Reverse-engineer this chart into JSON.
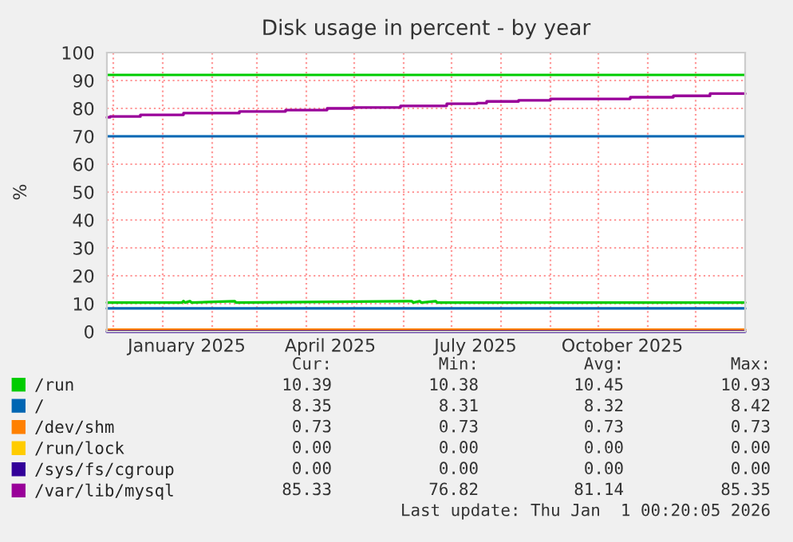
{
  "chart_data": {
    "type": "line",
    "title": "Disk usage in percent - by year",
    "ylabel": "%",
    "xlim": [
      "2024-11-27",
      "2026-01-01"
    ],
    "xticks": [
      {
        "value": "2024-12-01",
        "label": null
      },
      {
        "value": "2025-01-01",
        "label": null
      },
      {
        "value": "2025-01-16",
        "label": "January 2025"
      },
      {
        "value": "2025-02-01",
        "label": null
      },
      {
        "value": "2025-03-01",
        "label": null
      },
      {
        "value": "2025-04-01",
        "label": null
      },
      {
        "value": "2025-04-16",
        "label": "April 2025"
      },
      {
        "value": "2025-05-01",
        "label": null
      },
      {
        "value": "2025-06-01",
        "label": null
      },
      {
        "value": "2025-07-01",
        "label": null
      },
      {
        "value": "2025-07-16",
        "label": "July 2025"
      },
      {
        "value": "2025-08-01",
        "label": null
      },
      {
        "value": "2025-09-01",
        "label": null
      },
      {
        "value": "2025-10-01",
        "label": null
      },
      {
        "value": "2025-10-16",
        "label": "October 2025"
      },
      {
        "value": "2025-11-01",
        "label": null
      },
      {
        "value": "2025-12-01",
        "label": null
      }
    ],
    "ylim": [
      0,
      100
    ],
    "yticks": [
      0,
      10,
      20,
      30,
      40,
      50,
      60,
      70,
      80,
      90,
      100
    ],
    "grid": true,
    "legend": "bottom",
    "series": [
      {
        "name": "/run",
        "color": "#00cc00",
        "x": [
          "2024-11-27",
          "2025-01-13",
          "2025-01-14",
          "2025-01-15",
          "2025-01-18",
          "2025-01-19",
          "2025-02-15",
          "2025-02-16",
          "2025-06-06",
          "2025-06-07",
          "2025-06-11",
          "2025-06-12",
          "2025-06-21",
          "2025-06-22",
          "2026-01-01"
        ],
        "values": [
          10.4,
          10.4,
          10.9,
          10.4,
          10.9,
          10.4,
          10.9,
          10.4,
          10.9,
          10.4,
          10.9,
          10.4,
          10.9,
          10.4,
          10.4
        ]
      },
      {
        "name": "/",
        "color": "#0066b3",
        "x": [
          "2024-11-27",
          "2026-01-01"
        ],
        "values": [
          8.3,
          8.3
        ]
      },
      {
        "name": "/dev/shm",
        "color": "#ff8000",
        "x": [
          "2024-11-27",
          "2026-01-01"
        ],
        "values": [
          0.7,
          0.7
        ]
      },
      {
        "name": "/run/lock",
        "color": "#ffcc00"
      },
      {
        "name": "/sys/fs/cgroup",
        "color": "#330099",
        "x": [
          "2024-11-27",
          "2026-01-01"
        ],
        "values": [
          0,
          0
        ]
      },
      {
        "name": "/var/lib/mysql",
        "color": "#990099",
        "type": "step",
        "x": [
          "2024-11-27",
          "2024-11-29",
          "2024-12-18",
          "2025-01-14",
          "2025-02-18",
          "2025-03-19",
          "2025-04-14",
          "2025-04-30",
          "2025-05-30",
          "2025-06-28",
          "2025-07-17",
          "2025-07-23",
          "2025-08-12",
          "2025-09-01",
          "2025-10-21",
          "2025-11-17",
          "2025-12-10",
          "2026-01-01"
        ],
        "values": [
          76.8,
          77.1,
          77.7,
          78.3,
          78.9,
          79.4,
          80.0,
          80.3,
          80.9,
          81.7,
          81.9,
          82.5,
          82.9,
          83.4,
          84.0,
          84.5,
          85.3,
          85.3
        ]
      }
    ],
    "ref_lines": [
      {
        "axis": "y",
        "value": 92,
        "color": "#00cc00"
      },
      {
        "axis": "y",
        "value": 70,
        "color": "#0066b3"
      }
    ],
    "annotations": [
      "Cur:",
      "Min:",
      "Avg:",
      "Max:",
      "10.39",
      "10.38",
      "10.45",
      "10.93",
      "8.35",
      "8.31",
      "8.32",
      "8.42",
      "0.73",
      "0.73",
      "0.73",
      "0.73",
      "0.00",
      "0.00",
      "0.00",
      "0.00",
      "0.00",
      "0.00",
      "0.00",
      "0.00",
      "85.33",
      "76.82",
      "81.14",
      "85.35",
      "Last update: Thu Jan  1 00:20:05 2026"
    ]
  }
}
